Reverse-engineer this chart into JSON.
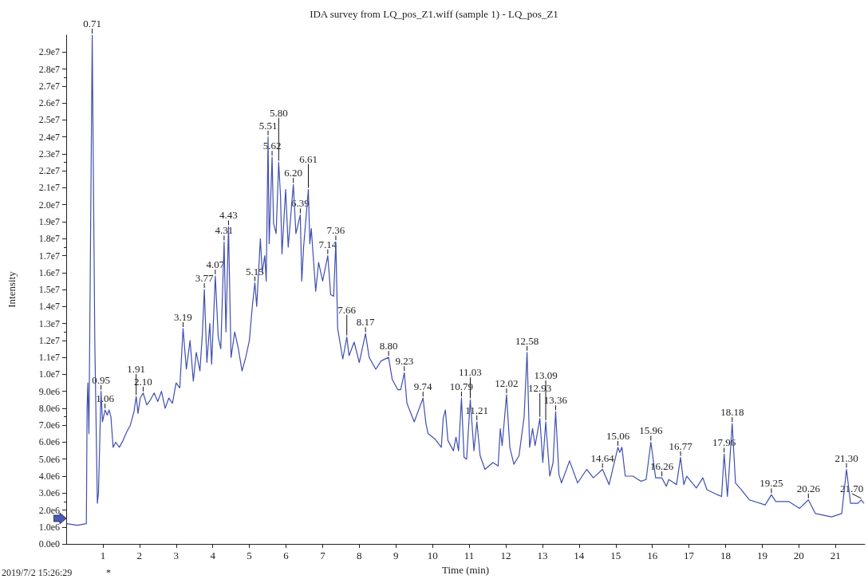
{
  "chart_data": {
    "type": "line",
    "title": "IDA survey from LQ_pos_Z1.wiff (sample 1) - LQ_pos_Z1",
    "xlabel": "Time (min)",
    "ylabel": "Intensity",
    "x": [
      0.02,
      0.3,
      0.55,
      0.57,
      0.59,
      0.62,
      0.71,
      0.78,
      0.85,
      0.88,
      0.95,
      0.99,
      1.06,
      1.12,
      1.17,
      1.22,
      1.28,
      1.35,
      1.45,
      1.55,
      1.65,
      1.75,
      1.85,
      1.91,
      1.96,
      2.02,
      2.1,
      2.2,
      2.3,
      2.4,
      2.5,
      2.6,
      2.7,
      2.8,
      2.9,
      3.0,
      3.1,
      3.19,
      3.28,
      3.38,
      3.47,
      3.55,
      3.65,
      3.72,
      3.77,
      3.84,
      3.92,
      3.97,
      4.07,
      4.15,
      4.22,
      4.31,
      4.36,
      4.43,
      4.5,
      4.6,
      4.7,
      4.8,
      4.9,
      5.0,
      5.08,
      5.15,
      5.2,
      5.3,
      5.35,
      5.42,
      5.46,
      5.51,
      5.54,
      5.62,
      5.66,
      5.73,
      5.8,
      5.85,
      5.89,
      5.99,
      6.06,
      6.2,
      6.27,
      6.39,
      6.43,
      6.48,
      6.61,
      6.65,
      6.69,
      6.81,
      6.89,
      7.0,
      7.14,
      7.22,
      7.3,
      7.36,
      7.41,
      7.55,
      7.66,
      7.72,
      7.86,
      8.0,
      8.17,
      8.27,
      8.45,
      8.6,
      8.8,
      8.9,
      9.05,
      9.13,
      9.23,
      9.3,
      9.5,
      9.74,
      9.82,
      9.88,
      10.06,
      10.24,
      10.29,
      10.35,
      10.42,
      10.57,
      10.64,
      10.71,
      10.79,
      10.86,
      10.93,
      11.03,
      11.13,
      11.21,
      11.3,
      11.43,
      11.65,
      11.79,
      11.85,
      11.9,
      12.02,
      12.11,
      12.22,
      12.36,
      12.5,
      12.58,
      12.65,
      12.73,
      12.8,
      12.93,
      13.01,
      13.09,
      13.2,
      13.29,
      13.36,
      13.45,
      13.52,
      13.74,
      13.96,
      14.21,
      14.39,
      14.64,
      14.82,
      15.06,
      15.11,
      15.17,
      15.26,
      15.47,
      15.69,
      15.83,
      15.96,
      16.09,
      16.26,
      16.38,
      16.45,
      16.66,
      16.77,
      16.86,
      16.94,
      17.2,
      17.38,
      17.49,
      17.78,
      17.89,
      17.96,
      18.05,
      18.18,
      18.27,
      18.43,
      18.65,
      19.08,
      19.25,
      19.37,
      19.73,
      20.02,
      20.26,
      20.45,
      20.89,
      21.17,
      21.3,
      21.41,
      21.61,
      21.7,
      21.78
    ],
    "series": [
      {
        "color": "#3f4fb0",
        "values": [
          1200000.0,
          1100000.0,
          1200000.0,
          8000000.0,
          9500000.0,
          6500000.0,
          30000000.0,
          12000000.0,
          2400000.0,
          3000000.0,
          9000000.0,
          7200000.0,
          7900000.0,
          7600000.0,
          7900000.0,
          7500000.0,
          5700000.0,
          6000000.0,
          5700000.0,
          6100000.0,
          6600000.0,
          7000000.0,
          7800000.0,
          8700000.0,
          7700000.0,
          8600000.0,
          8900000.0,
          8200000.0,
          8500000.0,
          8900000.0,
          8400000.0,
          9000000.0,
          8000000.0,
          8600000.0,
          8300000.0,
          9500000.0,
          9200000.0,
          12700000.0,
          10300000.0,
          12000000.0,
          9600000.0,
          11300000.0,
          10200000.0,
          12500000.0,
          15000000.0,
          10700000.0,
          13000000.0,
          10600000.0,
          15800000.0,
          12200000.0,
          11500000.0,
          17800000.0,
          12500000.0,
          18700000.0,
          11000000.0,
          12500000.0,
          11500000.0,
          10200000.0,
          11000000.0,
          12000000.0,
          14000000.0,
          15400000.0,
          14000000.0,
          18000000.0,
          16000000.0,
          17000000.0,
          15500000.0,
          24000000.0,
          17700000.0,
          22800000.0,
          18900000.0,
          18300000.0,
          22500000.0,
          20500000.0,
          17100000.0,
          20900000.0,
          17500000.0,
          21200000.0,
          18300000.0,
          19400000.0,
          15500000.0,
          17500000.0,
          20900000.0,
          17700000.0,
          18600000.0,
          14900000.0,
          16600000.0,
          15500000.0,
          17000000.0,
          14700000.0,
          14600000.0,
          17800000.0,
          12700000.0,
          10900000.0,
          12200000.0,
          11100000.0,
          11900000.0,
          10700000.0,
          12400000.0,
          11000000.0,
          10300000.0,
          10800000.0,
          11000000.0,
          9700000.0,
          9100000.0,
          9100000.0,
          10100000.0,
          8300000.0,
          7200000.0,
          8600000.0,
          7100000.0,
          6500000.0,
          6200000.0,
          5700000.0,
          7400000.0,
          7900000.0,
          6100000.0,
          5500000.0,
          6300000.0,
          5500000.0,
          8600000.0,
          5100000.0,
          5000000.0,
          8500000.0,
          5500000.0,
          7200000.0,
          5200000.0,
          4400000.0,
          4800000.0,
          4600000.0,
          6800000.0,
          5800000.0,
          8800000.0,
          5700000.0,
          4700000.0,
          5200000.0,
          7500000.0,
          11300000.0,
          5700000.0,
          6800000.0,
          5800000.0,
          7400000.0,
          4800000.0,
          7200000.0,
          4000000.0,
          4800000.0,
          7800000.0,
          4100000.0,
          3600000.0,
          4900000.0,
          3600000.0,
          4400000.0,
          3900000.0,
          4400000.0,
          3500000.0,
          5700000.0,
          5400000.0,
          5700000.0,
          4000000.0,
          4000000.0,
          3700000.0,
          3800000.0,
          6000000.0,
          3900000.0,
          3900000.0,
          3400000.0,
          3800000.0,
          3500000.0,
          5100000.0,
          3500000.0,
          4000000.0,
          3300000.0,
          3900000.0,
          3200000.0,
          2900000.0,
          2800000.0,
          5300000.0,
          2800000.0,
          7100000.0,
          3600000.0,
          3200000.0,
          2600000.0,
          2300000.0,
          2900000.0,
          2500000.0,
          2500000.0,
          2100000.0,
          2600000.0,
          1800000.0,
          1600000.0,
          1800000.0,
          4400000.0,
          2400000.0,
          2400000.0,
          2600000.0,
          2400000.0
        ]
      }
    ],
    "xlim": [
      0,
      21.8
    ],
    "xticks": [
      1,
      2,
      3,
      4,
      5,
      6,
      7,
      8,
      9,
      10,
      11,
      12,
      13,
      14,
      15,
      16,
      17,
      18,
      19,
      20,
      21
    ],
    "ylim": [
      0,
      30000000.0
    ],
    "yticks": [
      {
        "value": 0,
        "label": "0.0e0"
      },
      {
        "value": 1000000.0,
        "label": "1.0e6"
      },
      {
        "value": 2000000.0,
        "label": "2.0e6"
      },
      {
        "value": 3000000.0,
        "label": "3.0e6"
      },
      {
        "value": 4000000.0,
        "label": "4.0e6"
      },
      {
        "value": 5000000.0,
        "label": "5.0e6"
      },
      {
        "value": 6000000.0,
        "label": "6.0e6"
      },
      {
        "value": 7000000.0,
        "label": "7.0e6"
      },
      {
        "value": 8000000.0,
        "label": "8.0e6"
      },
      {
        "value": 9000000.0,
        "label": "9.0e6"
      },
      {
        "value": 10000000.0,
        "label": "1.0e7"
      },
      {
        "value": 11000000.0,
        "label": "1.1e7"
      },
      {
        "value": 12000000.0,
        "label": "1.2e7"
      },
      {
        "value": 13000000.0,
        "label": "1.3e7"
      },
      {
        "value": 14000000.0,
        "label": "1.4e7"
      },
      {
        "value": 15000000.0,
        "label": "1.5e7"
      },
      {
        "value": 16000000.0,
        "label": "1.6e7"
      },
      {
        "value": 17000000.0,
        "label": "1.7e7"
      },
      {
        "value": 18000000.0,
        "label": "1.8e7"
      },
      {
        "value": 19000000.0,
        "label": "1.9e7"
      },
      {
        "value": 20000000.0,
        "label": "2.0e7"
      },
      {
        "value": 21000000.0,
        "label": "2.1e7"
      },
      {
        "value": 22000000.0,
        "label": "2.2e7"
      },
      {
        "value": 23000000.0,
        "label": "2.3e7"
      },
      {
        "value": 24000000.0,
        "label": "2.4e7"
      },
      {
        "value": 25000000.0,
        "label": "2.5e7"
      },
      {
        "value": 26000000.0,
        "label": "2.6e7"
      },
      {
        "value": 27000000.0,
        "label": "2.7e7"
      },
      {
        "value": 28000000.0,
        "label": "2.8e7"
      },
      {
        "value": 29000000.0,
        "label": "2.9e7"
      }
    ],
    "grid": false,
    "marker": "none",
    "line_style": "solid",
    "annotations": [
      {
        "text": "0.71",
        "x": 0.71,
        "y": 30000000.0
      },
      {
        "text": "0.95",
        "x": 0.95,
        "y": 9000000.0
      },
      {
        "text": "1.06",
        "x": 1.06,
        "y": 7900000.0
      },
      {
        "text": "1.91",
        "x": 1.91,
        "y": 8700000.0
      },
      {
        "text": "2.10",
        "x": 2.1,
        "y": 8900000.0
      },
      {
        "text": "3.19",
        "x": 3.19,
        "y": 12700000.0
      },
      {
        "text": "3.77",
        "x": 3.77,
        "y": 15000000.0
      },
      {
        "text": "4.07",
        "x": 4.07,
        "y": 15800000.0
      },
      {
        "text": "4.31",
        "x": 4.31,
        "y": 17800000.0
      },
      {
        "text": "4.43",
        "x": 4.43,
        "y": 18700000.0
      },
      {
        "text": "5.15",
        "x": 5.15,
        "y": 15400000.0
      },
      {
        "text": "5.51",
        "x": 5.51,
        "y": 24000000.0
      },
      {
        "text": "5.62",
        "x": 5.62,
        "y": 22800000.0
      },
      {
        "text": "5.80",
        "x": 5.8,
        "y": 22500000.0
      },
      {
        "text": "6.20",
        "x": 6.2,
        "y": 21200000.0
      },
      {
        "text": "6.39",
        "x": 6.39,
        "y": 19400000.0
      },
      {
        "text": "6.61",
        "x": 6.61,
        "y": 20900000.0
      },
      {
        "text": "7.14",
        "x": 7.14,
        "y": 17000000.0
      },
      {
        "text": "7.36",
        "x": 7.36,
        "y": 17800000.0
      },
      {
        "text": "7.66",
        "x": 7.66,
        "y": 12200000.0
      },
      {
        "text": "8.17",
        "x": 8.17,
        "y": 12400000.0
      },
      {
        "text": "8.80",
        "x": 8.8,
        "y": 11000000.0
      },
      {
        "text": "9.23",
        "x": 9.23,
        "y": 10100000.0
      },
      {
        "text": "9.74",
        "x": 9.74,
        "y": 8600000.0
      },
      {
        "text": "10.79",
        "x": 10.79,
        "y": 8600000.0
      },
      {
        "text": "11.03",
        "x": 11.03,
        "y": 8500000.0
      },
      {
        "text": "11.21",
        "x": 11.21,
        "y": 7200000.0
      },
      {
        "text": "12.02",
        "x": 12.02,
        "y": 8800000.0
      },
      {
        "text": "12.58",
        "x": 12.58,
        "y": 11300000.0
      },
      {
        "text": "12.93",
        "x": 12.93,
        "y": 7400000.0
      },
      {
        "text": "13.09",
        "x": 13.09,
        "y": 7200000.0
      },
      {
        "text": "13.36",
        "x": 13.36,
        "y": 7800000.0
      },
      {
        "text": "14.64",
        "x": 14.64,
        "y": 4400000.0
      },
      {
        "text": "15.06",
        "x": 15.06,
        "y": 5700000.0
      },
      {
        "text": "15.96",
        "x": 15.96,
        "y": 6000000.0
      },
      {
        "text": "16.26",
        "x": 16.26,
        "y": 3900000.0
      },
      {
        "text": "16.77",
        "x": 16.77,
        "y": 5100000.0
      },
      {
        "text": "17.96",
        "x": 17.96,
        "y": 5300000.0
      },
      {
        "text": "18.18",
        "x": 18.18,
        "y": 7100000.0
      },
      {
        "text": "19.25",
        "x": 19.25,
        "y": 2900000.0
      },
      {
        "text": "20.26",
        "x": 20.26,
        "y": 2600000.0
      },
      {
        "text": "21.30",
        "x": 21.3,
        "y": 4400000.0
      },
      {
        "text": "21.70",
        "x": 21.7,
        "y": 2600000.0
      },
      "2019/7/2 15:26:29",
      "*"
    ]
  }
}
